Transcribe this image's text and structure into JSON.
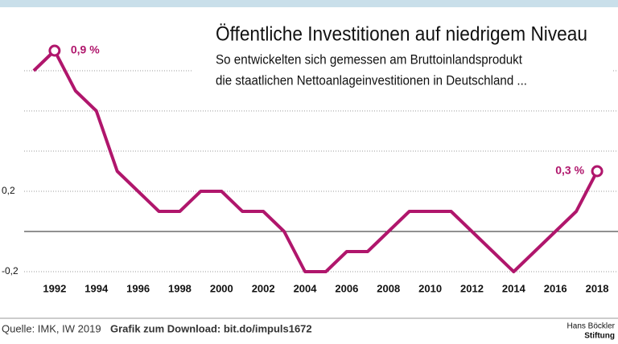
{
  "chart_data": {
    "type": "line",
    "title": "Öffentliche Investitionen auf niedrigem Niveau",
    "subtitle": [
      "So entwickelten sich gemessen am Bruttoinlandsprodukt",
      "die staatlichen Nettoanlageinvestitionen in Deutschland ..."
    ],
    "x": [
      1991,
      1992,
      1993,
      1994,
      1995,
      1996,
      1997,
      1998,
      1999,
      2000,
      2001,
      2002,
      2003,
      2004,
      2005,
      2006,
      2007,
      2008,
      2009,
      2010,
      2011,
      2012,
      2013,
      2014,
      2015,
      2016,
      2017,
      2018
    ],
    "series": [
      {
        "color": "#b0166c",
        "values": [
          0.8,
          0.9,
          0.7,
          0.6,
          0.3,
          0.2,
          0.1,
          0.1,
          0.2,
          0.2,
          0.1,
          0.1,
          0,
          -0.2,
          -0.2,
          -0.1,
          -0.1,
          0,
          0.1,
          0.1,
          0.1,
          0,
          -0.1,
          -0.2,
          -0.1,
          0,
          0.1,
          0.3
        ],
        "value_labels": [
          null,
          "0,9 %",
          null,
          null,
          null,
          null,
          null,
          null,
          null,
          null,
          null,
          null,
          null,
          null,
          null,
          null,
          null,
          null,
          null,
          null,
          null,
          null,
          null,
          null,
          null,
          null,
          null,
          "0,3 %"
        ]
      }
    ],
    "xlim": [
      1990,
      2019
    ],
    "xticks": [
      1992,
      1994,
      1996,
      1998,
      2000,
      2002,
      2004,
      2006,
      2008,
      2010,
      2012,
      2014,
      2016,
      2018
    ],
    "ylim": [
      -0.3,
      1.0
    ],
    "yticks": [
      {
        "value": -0.2,
        "label": "-0,2"
      },
      {
        "value": 0,
        "label": null
      },
      {
        "value": 0.2,
        "label": "0,2"
      },
      {
        "value": 0.4,
        "label": null
      },
      {
        "value": 0.6,
        "label": null
      },
      {
        "value": 0.8,
        "label": null
      }
    ],
    "grid": true,
    "source": "Quelle: IMK, IW 2019",
    "download": "Grafik zum Download: bit.do/impuls1672",
    "logo": [
      "Hans Böckler",
      "Stiftung"
    ]
  }
}
